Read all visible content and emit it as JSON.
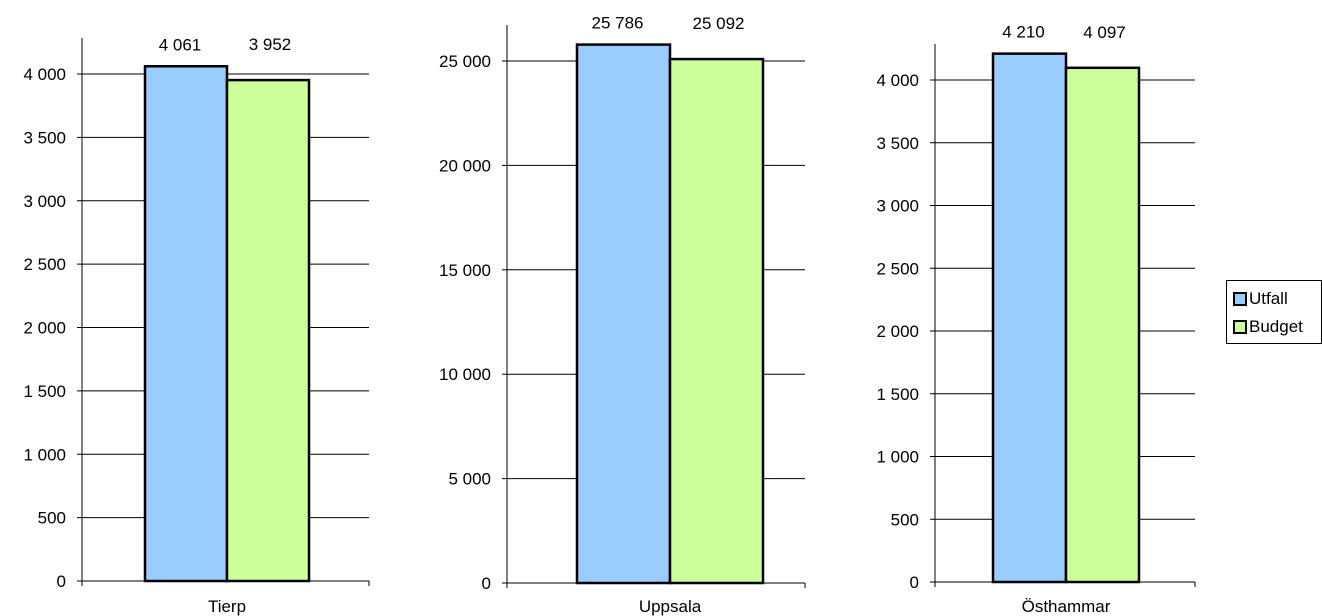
{
  "chart_data": [
    {
      "type": "bar",
      "categories": [
        "Tierp"
      ],
      "series": [
        {
          "name": "Utfall",
          "values": [
            4061
          ],
          "labels": [
            "4 061"
          ]
        },
        {
          "name": "Budget",
          "values": [
            3952
          ],
          "labels": [
            "3 952"
          ]
        }
      ],
      "ylim": [
        0,
        4000
      ],
      "yticks": [
        0,
        500,
        1000,
        1500,
        2000,
        2500,
        3000,
        3500,
        4000
      ],
      "ytick_labels": [
        "0",
        "500",
        "1 000",
        "1 500",
        "2 000",
        "2 500",
        "3 000",
        "3 500",
        "4 000"
      ],
      "grid": true
    },
    {
      "type": "bar",
      "categories": [
        "Uppsala"
      ],
      "series": [
        {
          "name": "Utfall",
          "values": [
            25786
          ],
          "labels": [
            "25 786"
          ]
        },
        {
          "name": "Budget",
          "values": [
            25092
          ],
          "labels": [
            "25 092"
          ]
        }
      ],
      "ylim": [
        0,
        25000
      ],
      "yticks": [
        0,
        5000,
        10000,
        15000,
        20000,
        25000
      ],
      "ytick_labels": [
        "0",
        "5 000",
        "10 000",
        "15 000",
        "20 000",
        "25 000"
      ],
      "grid": true
    },
    {
      "type": "bar",
      "categories": [
        "Östhammar"
      ],
      "series": [
        {
          "name": "Utfall",
          "values": [
            4210
          ],
          "labels": [
            "4 210"
          ]
        },
        {
          "name": "Budget",
          "values": [
            4097
          ],
          "labels": [
            "4 097"
          ]
        }
      ],
      "ylim": [
        0,
        4000
      ],
      "yticks": [
        0,
        500,
        1000,
        1500,
        2000,
        2500,
        3000,
        3500,
        4000
      ],
      "ytick_labels": [
        "0",
        "500",
        "1 000",
        "1 500",
        "2 000",
        "2 500",
        "3 000",
        "3 500",
        "4 000"
      ],
      "grid": true
    }
  ],
  "legend": {
    "placement": "right",
    "items": [
      {
        "label": "Utfall",
        "color": "#99ccff"
      },
      {
        "label": "Budget",
        "color": "#ccff99"
      }
    ]
  }
}
